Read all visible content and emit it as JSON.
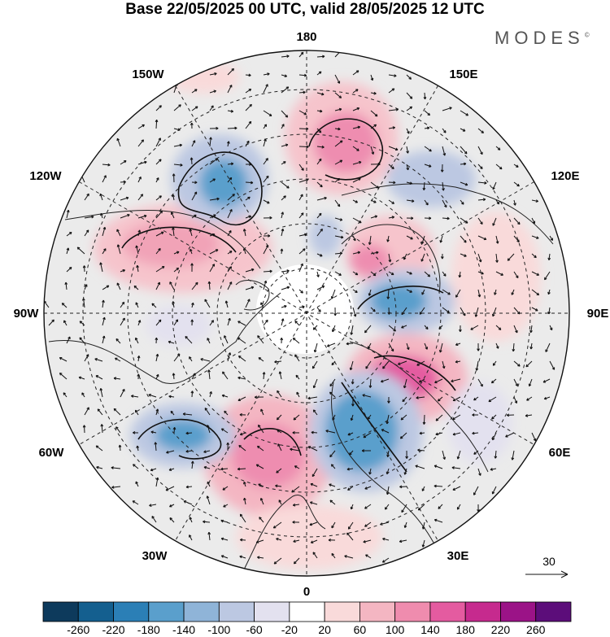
{
  "title": "Base 22/05/2025 00 UTC, valid 28/05/2025 12 UTC",
  "brand": "MODES",
  "brand_mark": "©",
  "longitude_labels": {
    "top": "180",
    "bottom": "0",
    "left": "90W",
    "right": "90E",
    "l150": "150W",
    "l120": "120W",
    "l60": "60W",
    "l30": "30W",
    "r150": "150E",
    "r120": "120E",
    "r60": "60E",
    "r30": "30E"
  },
  "reference_vector": "30",
  "colorbar": {
    "ticks": [
      "-260",
      "-220",
      "-180",
      "-140",
      "-100",
      "-60",
      "-20",
      "20",
      "60",
      "100",
      "140",
      "180",
      "220",
      "260"
    ],
    "colors": [
      "#0d3a5c",
      "#145f8f",
      "#2b7fb6",
      "#5a9fcc",
      "#8fb4d8",
      "#bcc8e2",
      "#e3e1ef",
      "#ffffff",
      "#f9dada",
      "#f4b6c2",
      "#ef8cae",
      "#e45ba0",
      "#c62a8e",
      "#9b1387",
      "#5c0d7a"
    ]
  }
}
